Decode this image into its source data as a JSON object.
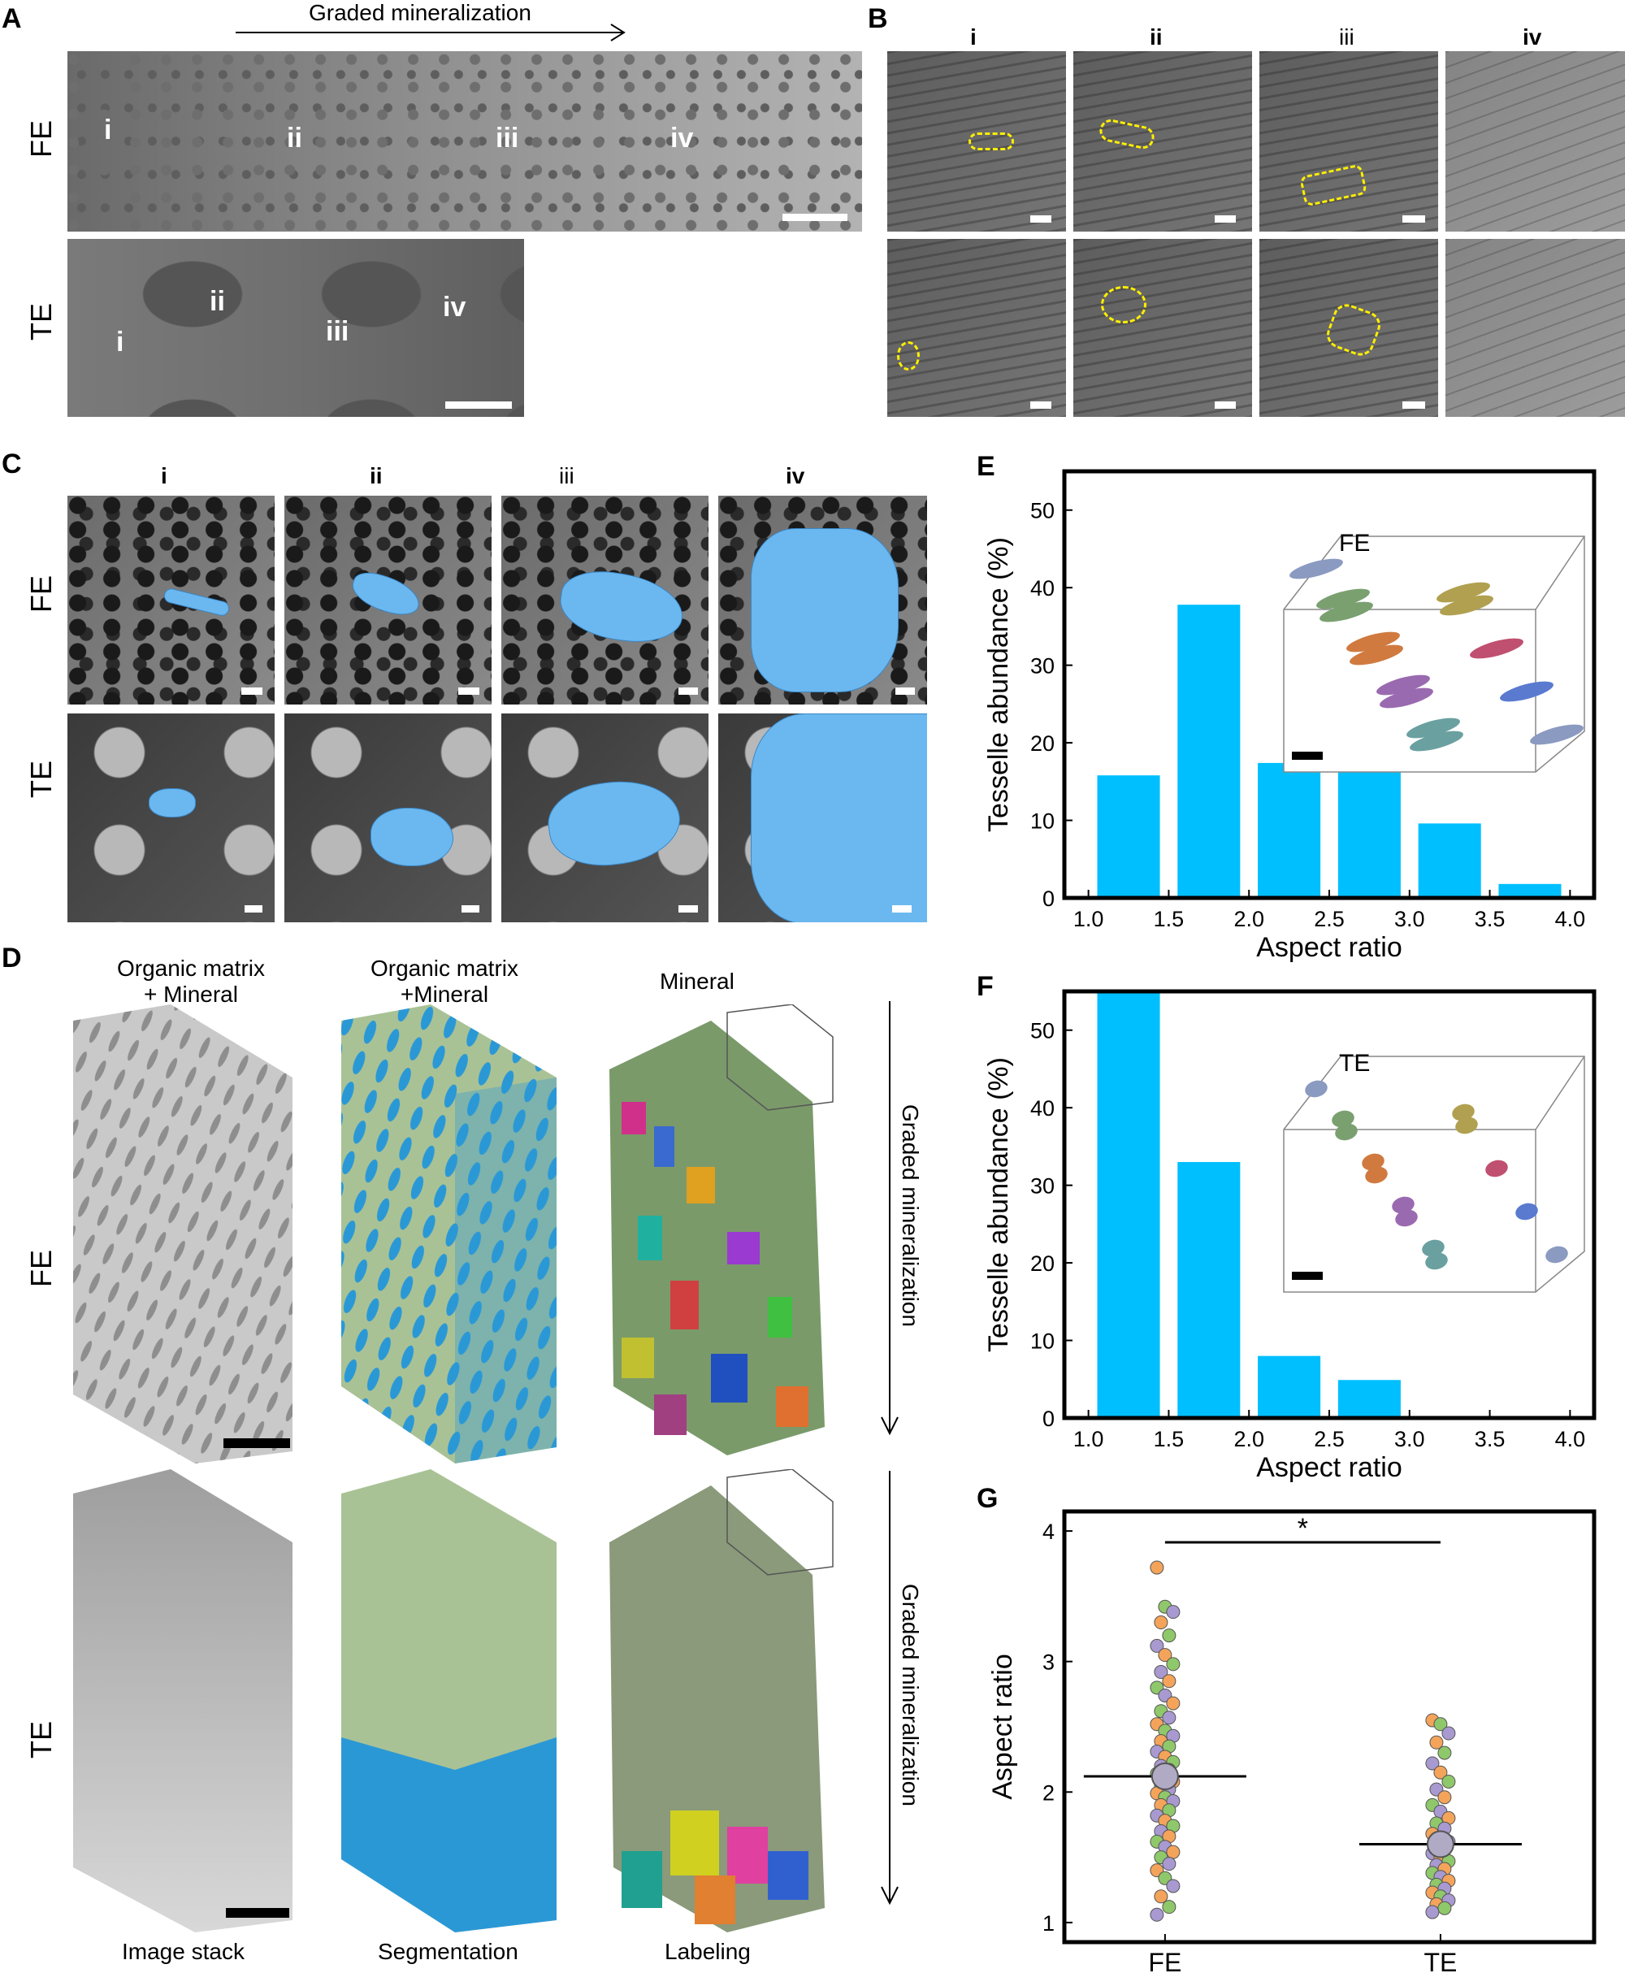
{
  "panels": {
    "A": {
      "letter": "A",
      "arrow_label": "Graded mineralization",
      "rows": [
        {
          "label": "FE",
          "regions": [
            "i",
            "ii",
            "iii",
            "iv"
          ]
        },
        {
          "label": "TE",
          "regions": [
            "i",
            "ii",
            "iii",
            "iv"
          ]
        }
      ]
    },
    "B": {
      "letter": "B",
      "columns": [
        "i",
        "ii",
        "iii",
        "iv"
      ]
    },
    "C": {
      "letter": "C",
      "columns": [
        "i",
        "ii",
        "iii",
        "iv"
      ],
      "rows": [
        "FE",
        "TE"
      ]
    },
    "D": {
      "letter": "D",
      "column_titles": [
        "Organic matrix\n+ Mineral",
        "Organic matrix\n+Mineral",
        "Mineral"
      ],
      "column_titles_line1": [
        "Organic matrix",
        "Organic matrix",
        "Mineral"
      ],
      "column_titles_line2": [
        "+ Mineral",
        "+Mineral",
        ""
      ],
      "row_labels": [
        "FE",
        "TE"
      ],
      "side_label": "Graded mineralization",
      "bottom_labels": [
        "Image stack",
        "Segmentation",
        "Labeling"
      ]
    },
    "E": {
      "letter": "E",
      "inset_label": "FE"
    },
    "F": {
      "letter": "F",
      "inset_label": "TE"
    },
    "G": {
      "letter": "G",
      "significance": "*"
    }
  },
  "chart_data": [
    {
      "panel": "E",
      "type": "bar",
      "x": [
        1.25,
        1.75,
        2.25,
        2.75,
        3.25,
        3.75
      ],
      "values": [
        15.8,
        37.8,
        17.4,
        18.9,
        9.6,
        1.8
      ],
      "xlabel": "Aspect ratio",
      "ylabel": "Tesselle abundance (%)",
      "xlim": [
        0.85,
        4.15
      ],
      "ylim": [
        0,
        55
      ],
      "xticks": [
        "1.0",
        "1.5",
        "2.0",
        "2.5",
        "3.0",
        "3.5",
        "4.0"
      ],
      "yticks": [
        "0",
        "10",
        "20",
        "30",
        "40",
        "50"
      ],
      "color": "#00bfff"
    },
    {
      "panel": "F",
      "type": "bar",
      "x": [
        1.25,
        1.75,
        2.25,
        2.75
      ],
      "values": [
        54.8,
        33.0,
        8.0,
        4.9
      ],
      "xlabel": "Aspect ratio",
      "ylabel": "Tesselle abundance (%)",
      "xlim": [
        0.85,
        4.15
      ],
      "ylim": [
        0,
        55
      ],
      "xticks": [
        "1.0",
        "1.5",
        "2.0",
        "2.5",
        "3.0",
        "3.5",
        "4.0"
      ],
      "yticks": [
        "0",
        "10",
        "20",
        "30",
        "40",
        "50"
      ],
      "color": "#00bfff"
    },
    {
      "panel": "G",
      "type": "scatter",
      "categories": [
        "FE",
        "TE"
      ],
      "means": [
        2.12,
        1.6
      ],
      "ylabel": "Aspect ratio",
      "ylim": [
        0.85,
        4.15
      ],
      "yticks": [
        "1",
        "2",
        "3",
        "4"
      ],
      "series": [
        {
          "category": "FE",
          "values": [
            3.72,
            3.42,
            3.38,
            3.3,
            3.2,
            3.12,
            3.05,
            2.98,
            2.92,
            2.85,
            2.8,
            2.74,
            2.68,
            2.62,
            2.57,
            2.52,
            2.47,
            2.43,
            2.39,
            2.35,
            2.31,
            2.27,
            2.23,
            2.2,
            2.17,
            2.14,
            2.11,
            2.08,
            2.05,
            2.02,
            1.99,
            1.96,
            1.93,
            1.9,
            1.86,
            1.82,
            1.78,
            1.74,
            1.7,
            1.66,
            1.62,
            1.58,
            1.54,
            1.5,
            1.45,
            1.4,
            1.34,
            1.28,
            1.2,
            1.12,
            1.06
          ]
        },
        {
          "category": "TE",
          "values": [
            2.55,
            2.52,
            2.45,
            2.38,
            2.3,
            2.22,
            2.15,
            2.08,
            2.02,
            1.96,
            1.9,
            1.85,
            1.8,
            1.76,
            1.72,
            1.68,
            1.65,
            1.62,
            1.59,
            1.56,
            1.53,
            1.5,
            1.47,
            1.44,
            1.41,
            1.38,
            1.35,
            1.32,
            1.29,
            1.26,
            1.23,
            1.2,
            1.17,
            1.14,
            1.11,
            1.08
          ]
        }
      ],
      "point_colors": [
        "#f4a45a",
        "#8fc86a",
        "#a89ad0"
      ]
    }
  ]
}
